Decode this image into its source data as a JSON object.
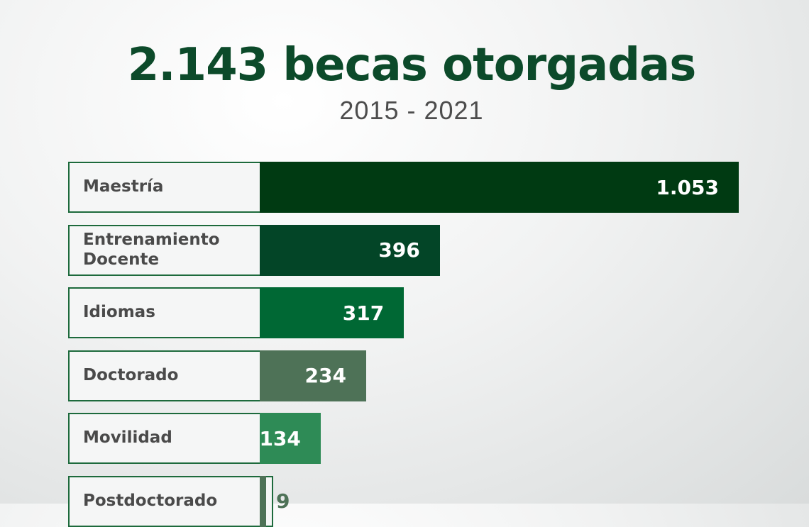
{
  "chart_data": {
    "type": "bar",
    "orientation": "horizontal",
    "title": "2.143 becas otorgadas",
    "subtitle": "2015 - 2021",
    "categories": [
      "Maestría",
      "Entrenamiento Docente",
      "Idiomas",
      "Doctorado",
      "Movilidad",
      "Postdoctorado"
    ],
    "values": [
      1053,
      396,
      317,
      234,
      134,
      9
    ],
    "value_labels": [
      "1.053",
      "396",
      "317",
      "234",
      "134",
      "9"
    ],
    "bar_colors": [
      "#003a12",
      "#034527",
      "#006834",
      "#4e7257",
      "#2e8b56",
      "#4e7257"
    ]
  }
}
